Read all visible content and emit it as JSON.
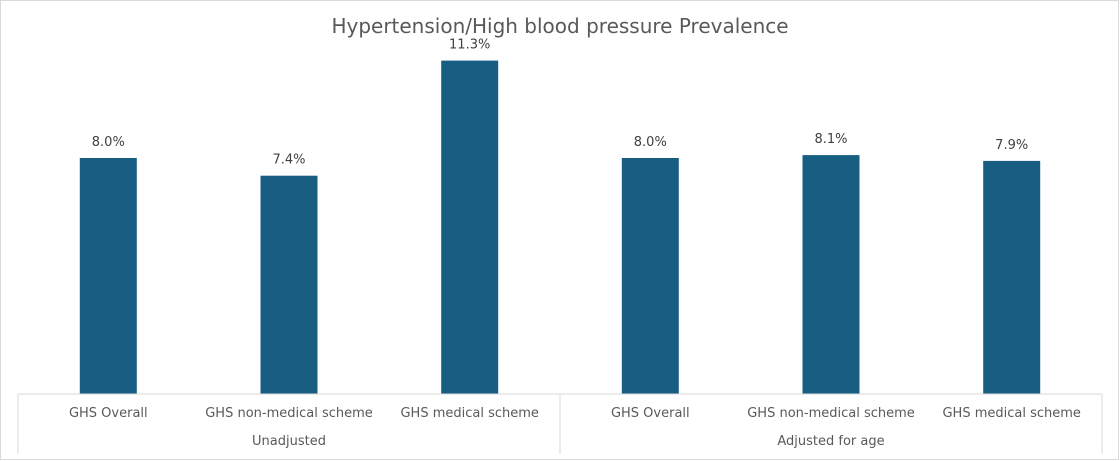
{
  "chart_data": {
    "type": "bar",
    "title": "Hypertension/High blood pressure Prevalence",
    "xlabel": "",
    "ylabel": "",
    "categories": [
      "GHS Overall",
      "GHS non-medical scheme",
      "GHS medical scheme",
      "GHS Overall",
      "GHS non-medical scheme",
      "GHS medical scheme"
    ],
    "groups": [
      {
        "label": "Unadjusted",
        "count": 3
      },
      {
        "label": "Adjusted for age",
        "count": 3
      }
    ],
    "values": [
      8.0,
      7.4,
      11.3,
      8.0,
      8.1,
      7.9
    ],
    "data_labels": [
      "8.0%",
      "7.4%",
      "11.3%",
      "8.0%",
      "8.1%",
      "7.9%"
    ],
    "ylim": [
      0,
      12
    ],
    "grid": false,
    "bar_color": "#175e82",
    "axis_color": "#d9d9d9",
    "text_color": "#595959"
  }
}
